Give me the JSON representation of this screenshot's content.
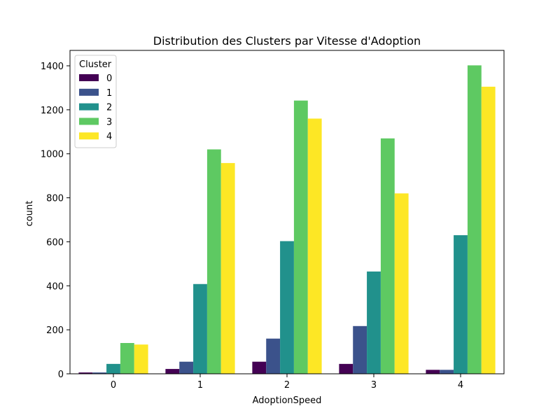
{
  "chart_data": {
    "type": "bar",
    "title": "Distribution des Clusters par Vitesse d'Adoption",
    "xlabel": "AdoptionSpeed",
    "ylabel": "count",
    "categories": [
      "0",
      "1",
      "2",
      "3",
      "4"
    ],
    "ylim": [
      0,
      1470
    ],
    "yticks": [
      0,
      200,
      400,
      600,
      800,
      1000,
      1200,
      1400
    ],
    "grid": false,
    "legend": {
      "title": "Cluster",
      "placement": "top-left"
    },
    "series": [
      {
        "name": "0",
        "color": "#440154",
        "values": [
          6,
          22,
          55,
          45,
          18
        ]
      },
      {
        "name": "1",
        "color": "#3b528b",
        "values": [
          6,
          55,
          160,
          217,
          18
        ]
      },
      {
        "name": "2",
        "color": "#21918c",
        "values": [
          45,
          408,
          603,
          465,
          630
        ]
      },
      {
        "name": "3",
        "color": "#5ec962",
        "values": [
          140,
          1020,
          1242,
          1070,
          1402
        ]
      },
      {
        "name": "4",
        "color": "#fde725",
        "values": [
          133,
          958,
          1160,
          820,
          1305
        ]
      }
    ]
  }
}
